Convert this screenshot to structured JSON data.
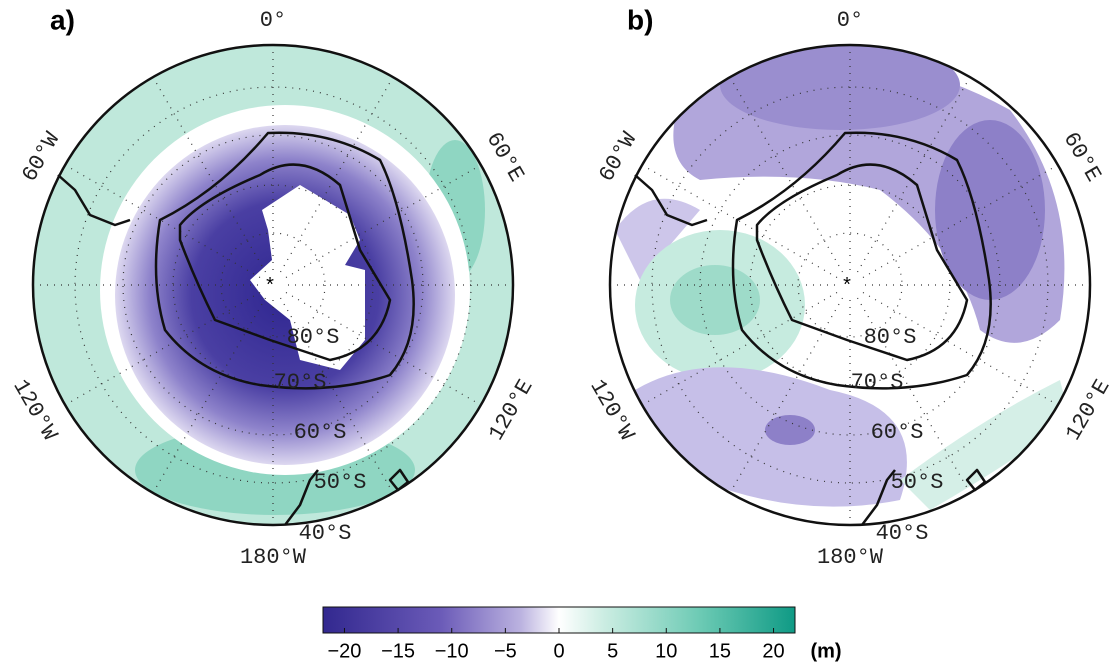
{
  "panels": [
    {
      "label": "a)",
      "longitude_labels": [
        "0°",
        "60°E",
        "120°E",
        "180°W",
        "120°W",
        "60°W"
      ],
      "latitude_labels": [
        "80°S",
        "70°S",
        "60°S",
        "50°S",
        "40°S"
      ]
    },
    {
      "label": "b)",
      "longitude_labels": [
        "0°",
        "60°E",
        "120°E",
        "180°W",
        "120°W",
        "60°W"
      ],
      "latitude_labels": [
        "80°S",
        "70°S",
        "60°S",
        "50°S",
        "40°S"
      ]
    }
  ],
  "colorbar": {
    "range": [
      -22,
      22
    ],
    "ticks": [
      {
        "value": -20,
        "label": "−20"
      },
      {
        "value": -15,
        "label": "−15"
      },
      {
        "value": -10,
        "label": "−10"
      },
      {
        "value": -5,
        "label": "−5"
      },
      0,
      5,
      10,
      15,
      20
    ],
    "unit": "(m)"
  }
}
